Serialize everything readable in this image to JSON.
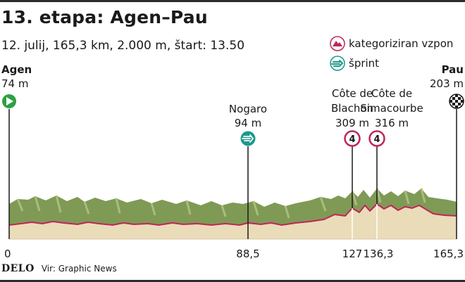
{
  "title": "13. etapa: Agen–Pau",
  "subtitle": "12. julij, 165,3 km, 2.000 m, štart: 13.50",
  "legend": {
    "climb_label": "kategoriziran vzpon",
    "sprint_label": "šprint"
  },
  "start": {
    "name": "Agen",
    "elevation": "74 m",
    "km": "0"
  },
  "finish": {
    "name": "Pau",
    "elevation": "203 m",
    "km": "165,3"
  },
  "sprint": {
    "name": "Nogaro",
    "elevation": "94 m",
    "km": "88,5"
  },
  "climbs": [
    {
      "name_line1": "Côte de",
      "name_line2": "Blachon",
      "elevation": "309 m",
      "category": "4",
      "km": "127"
    },
    {
      "name_line1": "Côte de",
      "name_line2": "Simacourbe",
      "elevation": "316 m",
      "category": "4",
      "km": "136,3"
    }
  ],
  "footer": {
    "brand": "DELO",
    "source": "Vir: Graphic News"
  },
  "colors": {
    "profile_fill": "#eadcb8",
    "profile_line": "#c0245b",
    "terrain": "#7f9a55",
    "climb_marker": "#c0245b",
    "sprint_marker": "#1a9a8c",
    "start_marker": "#2ea043"
  }
}
